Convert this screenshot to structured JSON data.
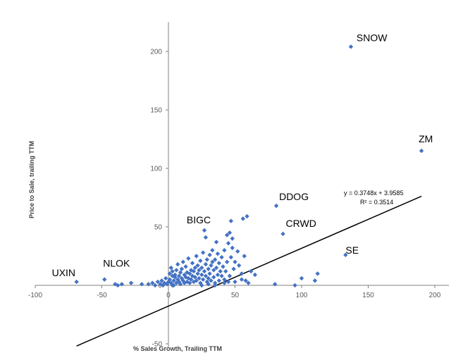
{
  "chart_data": {
    "type": "scatter",
    "title": "",
    "xlabel": "% Sales Growth, Trailing TTM",
    "ylabel": "Price to Sale, trailing TTM",
    "xlim": [
      -100,
      200
    ],
    "ylim": [
      -50,
      225
    ],
    "xticks": [
      -100,
      -50,
      0,
      50,
      100,
      150,
      200
    ],
    "yticks": [
      -50,
      0,
      50,
      100,
      150,
      200
    ],
    "colors": {
      "marker": "#4472c4",
      "axis": "#808080",
      "trend": "#000000"
    },
    "trendline": {
      "slope": 0.3748,
      "intercept": 3.9585,
      "x_range": [
        -69,
        190
      ],
      "equation": "y = 0.3748x + 3.9585",
      "r_squared": "R² = 0.3514"
    },
    "labeled_points": [
      {
        "label": "SNOW",
        "x": 137,
        "y": 204
      },
      {
        "label": "ZM",
        "x": 190,
        "y": 115
      },
      {
        "label": "DDOG",
        "x": 81,
        "y": 68
      },
      {
        "label": "CRWD",
        "x": 86,
        "y": 44
      },
      {
        "label": "BIGC",
        "x": 27,
        "y": 47
      },
      {
        "label": "SE",
        "x": 133,
        "y": 26
      },
      {
        "label": "NLOK",
        "x": -48,
        "y": 5
      },
      {
        "label": "UXIN",
        "x": -69,
        "y": 3
      }
    ],
    "points": [
      [
        -15,
        1
      ],
      [
        -12,
        2
      ],
      [
        -10,
        0
      ],
      [
        -8,
        3
      ],
      [
        -6,
        1
      ],
      [
        -5,
        4
      ],
      [
        -4,
        0
      ],
      [
        -3,
        2
      ],
      [
        -2,
        6
      ],
      [
        -1,
        1
      ],
      [
        0,
        3
      ],
      [
        1,
        5
      ],
      [
        1,
        10
      ],
      [
        2,
        2
      ],
      [
        2,
        15
      ],
      [
        3,
        8
      ],
      [
        3,
        12
      ],
      [
        4,
        0
      ],
      [
        4,
        4
      ],
      [
        5,
        7
      ],
      [
        5,
        9
      ],
      [
        6,
        2
      ],
      [
        6,
        13
      ],
      [
        7,
        5
      ],
      [
        7,
        18
      ],
      [
        8,
        3
      ],
      [
        8,
        8
      ],
      [
        9,
        1
      ],
      [
        9,
        11
      ],
      [
        10,
        6
      ],
      [
        10,
        14
      ],
      [
        11,
        4
      ],
      [
        11,
        20
      ],
      [
        12,
        9
      ],
      [
        12,
        2
      ],
      [
        13,
        7
      ],
      [
        13,
        16
      ],
      [
        14,
        3
      ],
      [
        14,
        11
      ],
      [
        15,
        6
      ],
      [
        15,
        23
      ],
      [
        16,
        10
      ],
      [
        16,
        2
      ],
      [
        17,
        13
      ],
      [
        17,
        5
      ],
      [
        18,
        8
      ],
      [
        18,
        19
      ],
      [
        19,
        3
      ],
      [
        19,
        12
      ],
      [
        20,
        15
      ],
      [
        20,
        7
      ],
      [
        21,
        25
      ],
      [
        21,
        4
      ],
      [
        22,
        10
      ],
      [
        22,
        17
      ],
      [
        23,
        6
      ],
      [
        23,
        13
      ],
      [
        24,
        2
      ],
      [
        24,
        21
      ],
      [
        25,
        9
      ],
      [
        25,
        15
      ],
      [
        26,
        5
      ],
      [
        26,
        28
      ],
      [
        27,
        12
      ],
      [
        28,
        18
      ],
      [
        28,
        8
      ],
      [
        29,
        3
      ],
      [
        29,
        22
      ],
      [
        30,
        14
      ],
      [
        30,
        6
      ],
      [
        31,
        26
      ],
      [
        31,
        10
      ],
      [
        32,
        17
      ],
      [
        32,
        4
      ],
      [
        33,
        20
      ],
      [
        33,
        30
      ],
      [
        34,
        13
      ],
      [
        34,
        7
      ],
      [
        35,
        22
      ],
      [
        35,
        2
      ],
      [
        36,
        15
      ],
      [
        37,
        9
      ],
      [
        37,
        27
      ],
      [
        38,
        19
      ],
      [
        38,
        4
      ],
      [
        39,
        12
      ],
      [
        40,
        24
      ],
      [
        40,
        8
      ],
      [
        41,
        16
      ],
      [
        42,
        5
      ],
      [
        42,
        30
      ],
      [
        43,
        12
      ],
      [
        44,
        20
      ],
      [
        44,
        43
      ],
      [
        45,
        36
      ],
      [
        46,
        45
      ],
      [
        46,
        8
      ],
      [
        47,
        55
      ],
      [
        47,
        24
      ],
      [
        48,
        32
      ],
      [
        49,
        14
      ],
      [
        50,
        20
      ],
      [
        50,
        3
      ],
      [
        52,
        29
      ],
      [
        53,
        17
      ],
      [
        55,
        10
      ],
      [
        56,
        57
      ],
      [
        57,
        25
      ],
      [
        58,
        4
      ],
      [
        59,
        59
      ],
      [
        60,
        2
      ],
      [
        62,
        12
      ],
      [
        65,
        9
      ],
      [
        3,
        0
      ],
      [
        -20,
        1
      ],
      [
        -28,
        2
      ],
      [
        -35,
        1
      ],
      [
        -38,
        0
      ],
      [
        -40,
        1
      ],
      [
        25,
        0
      ],
      [
        30,
        1
      ],
      [
        35,
        0
      ],
      [
        45,
        3
      ],
      [
        95,
        0
      ],
      [
        100,
        6
      ],
      [
        110,
        4
      ],
      [
        112,
        10
      ],
      [
        80,
        1
      ],
      [
        55,
        5
      ],
      [
        42,
        2
      ],
      [
        48,
        40
      ],
      [
        36,
        37
      ],
      [
        28,
        41
      ]
    ]
  }
}
